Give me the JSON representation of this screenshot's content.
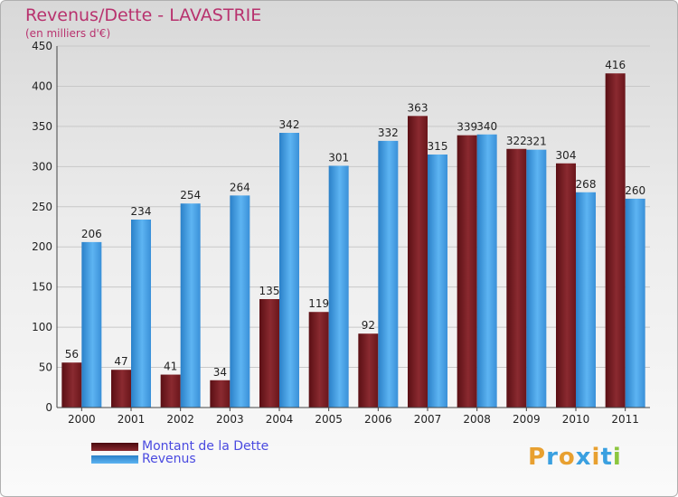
{
  "chart_data": {
    "type": "bar",
    "title": "Revenus/Dette - LAVASTRIE",
    "subtitle": "(en milliers d'€)",
    "categories": [
      "2000",
      "2001",
      "2002",
      "2003",
      "2004",
      "2005",
      "2006",
      "2007",
      "2008",
      "2009",
      "2010",
      "2011"
    ],
    "series": [
      {
        "name": "Montant de la Dette",
        "color": "#7a1e22",
        "values": [
          56,
          47,
          41,
          34,
          135,
          119,
          92,
          363,
          339,
          322,
          304,
          416
        ]
      },
      {
        "name": "Revenus",
        "color": "#4aa3e8",
        "values": [
          206,
          234,
          254,
          264,
          342,
          301,
          332,
          315,
          340,
          321,
          268,
          260
        ]
      }
    ],
    "ylim": [
      0,
      450
    ],
    "yticks": [
      0,
      50,
      100,
      150,
      200,
      250,
      300,
      350,
      400,
      450
    ],
    "grid": true,
    "legend": "bottom-left"
  },
  "logo": {
    "text": "Proxiti",
    "letters": [
      {
        "ch": "P",
        "color": "#e8a030"
      },
      {
        "ch": "r",
        "color": "#3aa0e0"
      },
      {
        "ch": "o",
        "color": "#e8a030"
      },
      {
        "ch": "x",
        "color": "#3aa0e0"
      },
      {
        "ch": "i",
        "color": "#e8a030"
      },
      {
        "ch": "t",
        "color": "#3aa0e0"
      },
      {
        "ch": "i",
        "color": "#8cc63f"
      }
    ]
  }
}
